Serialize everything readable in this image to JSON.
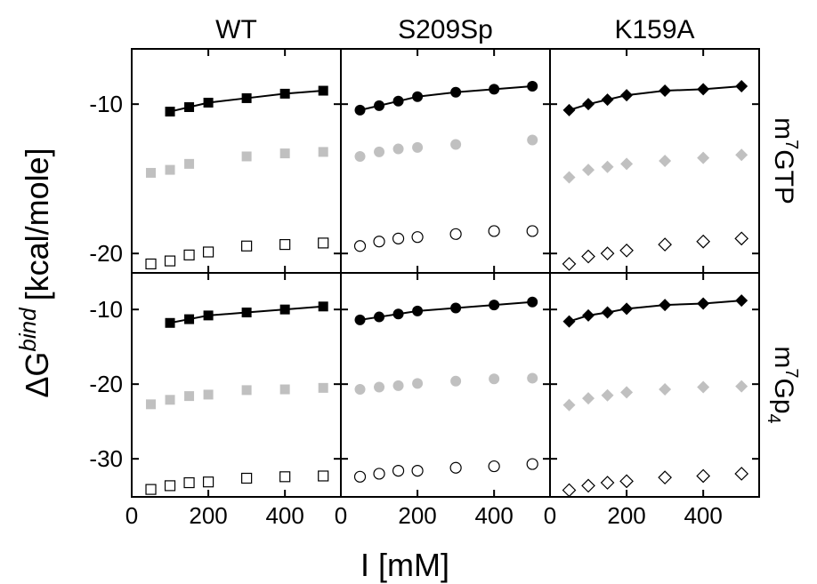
{
  "xlabel": "I [mM]",
  "ylabel": {
    "base": "ΔG",
    "sup": "bind",
    "rest": "[kcal/mole]"
  },
  "chart_data": [
    {
      "type": "scatter",
      "title": "WT",
      "xlim": [
        0,
        546
      ],
      "ylim": [
        -21.3,
        -6.3
      ],
      "xticks": [
        0,
        200,
        400
      ],
      "yticks": [
        -10,
        -20
      ],
      "series": [
        {
          "marker": "square",
          "fill": "filled",
          "color": "#000000",
          "line": true,
          "x": [
            100,
            150,
            200,
            300,
            400,
            500
          ],
          "values": [
            -10.5,
            -10.2,
            -9.9,
            -9.6,
            -9.3,
            -9.1
          ]
        },
        {
          "marker": "square",
          "fill": "filled",
          "color": "#c0c0c0",
          "line": false,
          "x": [
            50,
            100,
            150,
            300,
            400,
            500
          ],
          "values": [
            -14.6,
            -14.4,
            -14.0,
            -13.5,
            -13.3,
            -13.2
          ]
        },
        {
          "marker": "square",
          "fill": "open",
          "color": "#000000",
          "line": false,
          "x": [
            50,
            100,
            150,
            200,
            300,
            400,
            500
          ],
          "values": [
            -20.7,
            -20.5,
            -20.1,
            -19.9,
            -19.5,
            -19.4,
            -19.3
          ]
        }
      ]
    },
    {
      "type": "scatter",
      "title": "S209Sp",
      "xlim": [
        0,
        546
      ],
      "ylim": [
        -21.3,
        -6.3
      ],
      "xticks": [
        0,
        200,
        400
      ],
      "yticks": [
        -10,
        -20
      ],
      "series": [
        {
          "marker": "circle",
          "fill": "filled",
          "color": "#000000",
          "line": true,
          "x": [
            50,
            100,
            150,
            200,
            300,
            400,
            500
          ],
          "values": [
            -10.4,
            -10.1,
            -9.8,
            -9.5,
            -9.2,
            -9.0,
            -8.8
          ]
        },
        {
          "marker": "circle",
          "fill": "filled",
          "color": "#c0c0c0",
          "line": false,
          "x": [
            50,
            100,
            150,
            200,
            300,
            500
          ],
          "values": [
            -13.5,
            -13.2,
            -13.0,
            -12.9,
            -12.7,
            -12.4
          ]
        },
        {
          "marker": "circle",
          "fill": "open",
          "color": "#000000",
          "line": false,
          "x": [
            50,
            100,
            150,
            200,
            300,
            400,
            500
          ],
          "values": [
            -19.5,
            -19.2,
            -19.0,
            -18.9,
            -18.7,
            -18.5,
            -18.5
          ]
        }
      ]
    },
    {
      "type": "scatter",
      "title": "K159A",
      "row_label": {
        "base": "m",
        "sup": "7",
        "rest": "GTP"
      },
      "xlim": [
        0,
        546
      ],
      "ylim": [
        -21.3,
        -6.3
      ],
      "xticks": [
        0,
        200,
        400
      ],
      "yticks": [
        -10,
        -20
      ],
      "series": [
        {
          "marker": "diamond",
          "fill": "filled",
          "color": "#000000",
          "line": true,
          "x": [
            50,
            100,
            150,
            200,
            300,
            400,
            500
          ],
          "values": [
            -10.4,
            -10.0,
            -9.7,
            -9.4,
            -9.1,
            -9.0,
            -8.8
          ]
        },
        {
          "marker": "diamond",
          "fill": "filled",
          "color": "#c0c0c0",
          "line": false,
          "x": [
            50,
            100,
            150,
            200,
            300,
            400,
            500
          ],
          "values": [
            -14.9,
            -14.4,
            -14.2,
            -14.0,
            -13.8,
            -13.6,
            -13.4
          ]
        },
        {
          "marker": "diamond",
          "fill": "open",
          "color": "#000000",
          "line": false,
          "x": [
            50,
            100,
            150,
            200,
            300,
            400,
            500
          ],
          "values": [
            -20.7,
            -20.2,
            -20.0,
            -19.8,
            -19.4,
            -19.2,
            -19.0
          ]
        }
      ]
    },
    {
      "type": "scatter",
      "xlim": [
        0,
        546
      ],
      "ylim": [
        -35.1,
        -5.1
      ],
      "xticks": [
        0,
        200,
        400
      ],
      "yticks": [
        -10,
        -20,
        -30
      ],
      "series": [
        {
          "marker": "square",
          "fill": "filled",
          "color": "#000000",
          "line": true,
          "x": [
            100,
            150,
            200,
            300,
            400,
            500
          ],
          "values": [
            -11.8,
            -11.3,
            -10.8,
            -10.4,
            -10.0,
            -9.6
          ]
        },
        {
          "marker": "square",
          "fill": "filled",
          "color": "#c0c0c0",
          "line": false,
          "x": [
            50,
            100,
            150,
            200,
            300,
            400,
            500
          ],
          "values": [
            -22.7,
            -22.1,
            -21.6,
            -21.4,
            -20.8,
            -20.7,
            -20.5
          ]
        },
        {
          "marker": "square",
          "fill": "open",
          "color": "#000000",
          "line": false,
          "x": [
            50,
            100,
            150,
            200,
            300,
            400,
            500
          ],
          "values": [
            -34.1,
            -33.6,
            -33.2,
            -33.1,
            -32.6,
            -32.4,
            -32.3
          ]
        }
      ]
    },
    {
      "type": "scatter",
      "xlim": [
        0,
        546
      ],
      "ylim": [
        -35.1,
        -5.1
      ],
      "xticks": [
        0,
        200,
        400
      ],
      "yticks": [
        -10,
        -20,
        -30
      ],
      "series": [
        {
          "marker": "circle",
          "fill": "filled",
          "color": "#000000",
          "line": true,
          "x": [
            50,
            100,
            150,
            200,
            300,
            400,
            500
          ],
          "values": [
            -11.4,
            -11.0,
            -10.6,
            -10.2,
            -9.8,
            -9.4,
            -9.0
          ]
        },
        {
          "marker": "circle",
          "fill": "filled",
          "color": "#c0c0c0",
          "line": false,
          "x": [
            50,
            100,
            150,
            200,
            300,
            400,
            500
          ],
          "values": [
            -20.7,
            -20.4,
            -20.2,
            -19.9,
            -19.6,
            -19.3,
            -19.2
          ]
        },
        {
          "marker": "circle",
          "fill": "open",
          "color": "#000000",
          "line": false,
          "x": [
            50,
            100,
            150,
            200,
            300,
            400,
            500
          ],
          "values": [
            -32.4,
            -32.0,
            -31.6,
            -31.6,
            -31.2,
            -31.0,
            -30.7
          ]
        }
      ]
    },
    {
      "type": "scatter",
      "row_label": {
        "base": "m",
        "sup": "7",
        "rest": "Gp",
        "sub": "4"
      },
      "xlim": [
        0,
        546
      ],
      "ylim": [
        -35.1,
        -5.1
      ],
      "xticks": [
        0,
        200,
        400
      ],
      "yticks": [
        -10,
        -20,
        -30
      ],
      "series": [
        {
          "marker": "diamond",
          "fill": "filled",
          "color": "#000000",
          "line": true,
          "x": [
            50,
            100,
            150,
            200,
            300,
            400,
            500
          ],
          "values": [
            -11.6,
            -10.8,
            -10.4,
            -9.9,
            -9.4,
            -9.2,
            -8.8
          ]
        },
        {
          "marker": "diamond",
          "fill": "filled",
          "color": "#c0c0c0",
          "line": false,
          "x": [
            50,
            100,
            150,
            200,
            300,
            400,
            500
          ],
          "values": [
            -22.8,
            -21.9,
            -21.5,
            -21.1,
            -20.7,
            -20.4,
            -20.3
          ]
        },
        {
          "marker": "diamond",
          "fill": "open",
          "color": "#000000",
          "line": false,
          "x": [
            50,
            100,
            150,
            200,
            300,
            400,
            500
          ],
          "values": [
            -34.2,
            -33.6,
            -33.2,
            -33.0,
            -32.5,
            -32.3,
            -32.0
          ]
        }
      ]
    }
  ]
}
